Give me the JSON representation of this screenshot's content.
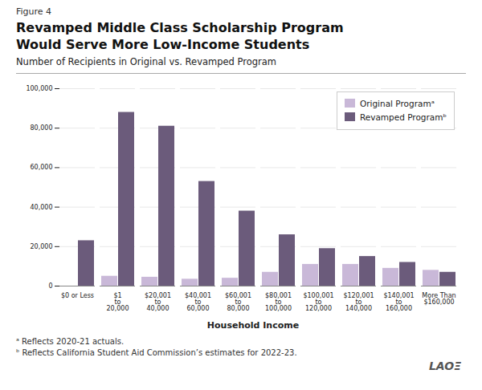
{
  "chart_data": {
    "type": "bar",
    "title": "Revamped Middle Class Scholarship Program\nWould Serve More Low-Income Students",
    "subtitle": "Number of Recipients in Original vs. Revamped Program",
    "xlabel": "Household Income",
    "categories": [
      "$0 or Less",
      "$1\nto\n20,000",
      "$20,001\nto\n40,000",
      "$40,001\nto\n60,000",
      "$60,001\nto\n80,000",
      "$80,001\nto\n100,000",
      "$100,001\nto\n120,000",
      "$120,001\nto\n140,000",
      "$140,001\nto\n160,000",
      "More Than\n$160,000"
    ],
    "series": [
      {
        "name": "Original Programᵃ",
        "color": "#c9b8d8",
        "values": [
          0,
          5000,
          4500,
          3500,
          4000,
          7000,
          11000,
          11000,
          9000,
          8000
        ]
      },
      {
        "name": "Revamped Programᵇ",
        "color": "#6b5b7b",
        "values": [
          23000,
          88000,
          81000,
          53000,
          38000,
          26000,
          19000,
          15000,
          12000,
          7000
        ]
      }
    ],
    "ylim": [
      0,
      100000
    ],
    "yticks": [
      0,
      {
        "value": 20000,
        "label": "20,000"
      },
      {
        "value": 40000,
        "label": "40,000"
      },
      {
        "value": 60000,
        "label": "60,000"
      },
      {
        "value": 80000,
        "label": "80,000"
      },
      {
        "value": 100000,
        "label": "100,000"
      }
    ],
    "grid": true,
    "legend": "upper right",
    "annotations": [
      "Figure 4",
      "ᵃ  Reflects 2020-21 actuals.",
      "ᵇ  Reflects California Student Aid Commission’s estimates for 2022-23.",
      "LAOΞ"
    ]
  }
}
